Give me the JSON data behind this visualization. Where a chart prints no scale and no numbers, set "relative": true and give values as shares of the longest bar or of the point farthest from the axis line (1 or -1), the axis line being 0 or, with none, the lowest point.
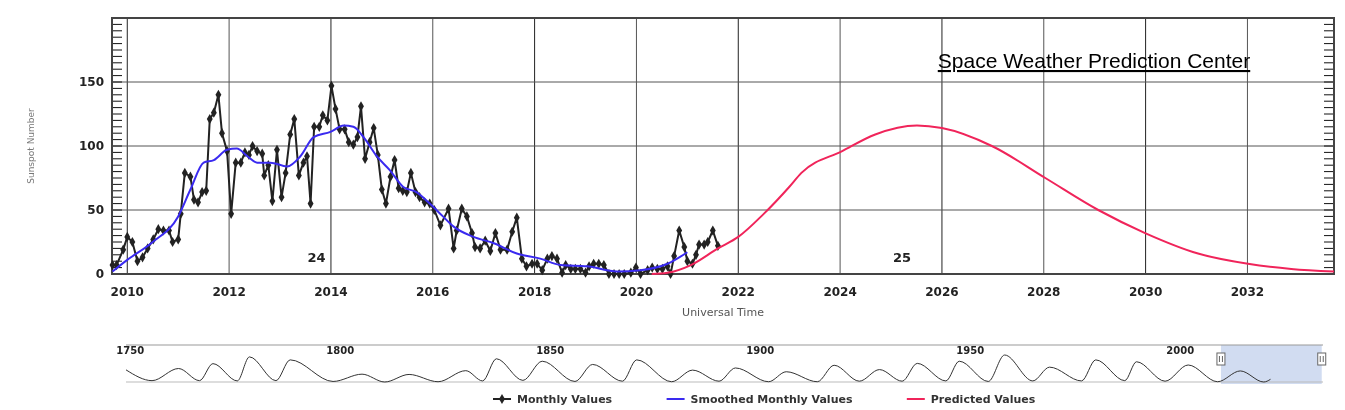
{
  "chart_data": [
    {
      "type": "line",
      "xlabel": "Universal Time",
      "ylabel": "Sunspot Number",
      "xlim": [
        2009.7,
        2033.7
      ],
      "xticks": [
        2010,
        2012,
        2014,
        2016,
        2018,
        2020,
        2022,
        2024,
        2026,
        2028,
        2030,
        2032
      ],
      "ylim": [
        0,
        200
      ],
      "yticks": [
        0,
        50,
        100,
        150
      ],
      "grid": true,
      "legend": "bottom",
      "annotations": [
        "24",
        "25",
        "Space Weather Prediction Center"
      ],
      "series": [
        {
          "name": "Monthly Values",
          "color": "#222222",
          "marker": "diamond",
          "x": [
            2009.71,
            2009.79,
            2009.92,
            2010.0,
            2010.1,
            2010.2,
            2010.3,
            2010.4,
            2010.51,
            2010.61,
            2010.71,
            2010.82,
            2010.89,
            2011.0,
            2011.05,
            2011.13,
            2011.24,
            2011.31,
            2011.39,
            2011.47,
            2011.55,
            2011.62,
            2011.7,
            2011.79,
            2011.86,
            2011.96,
            2012.04,
            2012.13,
            2012.23,
            2012.31,
            2012.39,
            2012.46,
            2012.55,
            2012.65,
            2012.69,
            2012.77,
            2012.85,
            2012.94,
            2013.03,
            2013.11,
            2013.2,
            2013.28,
            2013.37,
            2013.46,
            2013.53,
            2013.6,
            2013.67,
            2013.77,
            2013.84,
            2013.93,
            2014.01,
            2014.09,
            2014.17,
            2014.27,
            2014.35,
            2014.44,
            2014.52,
            2014.59,
            2014.67,
            2014.76,
            2014.84,
            2014.92,
            2015.0,
            2015.08,
            2015.17,
            2015.25,
            2015.33,
            2015.41,
            2015.49,
            2015.57,
            2015.66,
            2015.74,
            2015.84,
            2015.94,
            2016.03,
            2016.15,
            2016.31,
            2016.41,
            2016.47,
            2016.57,
            2016.67,
            2016.77,
            2016.83,
            2016.93,
            2017.03,
            2017.13,
            2017.23,
            2017.33,
            2017.46,
            2017.56,
            2017.65,
            2017.75,
            2017.84,
            2017.95,
            2018.05,
            2018.15,
            2018.25,
            2018.34,
            2018.44,
            2018.54,
            2018.61,
            2018.71,
            2018.8,
            2018.9,
            2019.0,
            2019.07,
            2019.16,
            2019.26,
            2019.36,
            2019.46,
            2019.56,
            2019.66,
            2019.76,
            2019.89,
            2019.99,
            2020.08,
            2020.22,
            2020.31,
            2020.41,
            2020.51,
            2020.61,
            2020.67,
            2020.74,
            2020.84,
            2020.94,
            2021.0,
            2021.1,
            2021.17,
            2021.23,
            2021.33,
            2021.4,
            2021.5,
            2021.6
          ],
          "values": [
            7,
            7,
            19,
            29,
            25,
            10,
            13,
            20,
            27,
            35,
            34,
            34,
            25,
            27,
            47,
            79,
            76,
            58,
            56,
            64,
            65,
            121,
            126,
            140,
            110,
            96,
            47,
            87,
            87,
            95,
            93,
            100,
            96,
            94,
            77,
            85,
            57,
            97,
            60,
            79,
            109,
            121,
            77,
            87,
            92,
            55,
            115,
            115,
            124,
            120,
            147,
            129,
            113,
            113,
            103,
            101,
            107,
            131,
            90,
            103,
            114,
            93,
            66,
            55,
            76,
            89,
            67,
            65,
            64,
            79,
            64,
            60,
            56,
            55,
            50,
            38,
            51,
            20,
            34,
            51,
            45,
            32,
            21,
            20,
            26,
            18,
            32,
            19,
            19,
            33,
            44,
            12,
            6,
            8,
            8,
            3,
            12,
            14,
            12,
            1,
            7,
            4,
            4,
            4,
            1,
            6,
            8,
            8,
            7,
            0,
            0,
            0,
            0,
            1,
            5,
            0,
            3,
            5,
            4,
            4,
            6,
            0,
            14,
            34,
            21,
            10,
            8,
            15,
            23,
            23,
            25,
            34,
            22
          ]
        },
        {
          "name": "Smoothed Monthly Values",
          "color": "#3a2af0",
          "marker": "none",
          "x": [
            2009.71,
            2010.0,
            2010.5,
            2011.0,
            2011.24,
            2011.5,
            2011.7,
            2011.96,
            2012.15,
            2012.36,
            2012.55,
            2012.81,
            2013.14,
            2013.4,
            2013.66,
            2013.99,
            2014.25,
            2014.44,
            2014.64,
            2014.9,
            2015.16,
            2015.42,
            2015.68,
            2015.94,
            2016.2,
            2016.41,
            2016.8,
            2017.2,
            2017.65,
            2018.11,
            2018.51,
            2019.03,
            2019.62,
            2020.08,
            2020.61,
            2021.0
          ],
          "values": [
            2,
            11,
            25,
            45,
            66,
            87,
            89,
            97,
            98,
            92,
            87,
            87,
            84,
            92,
            107,
            111,
            116,
            115,
            107,
            92,
            81,
            68,
            64,
            55,
            45,
            37,
            29,
            24,
            16,
            12,
            7,
            6,
            2,
            3,
            8,
            17
          ]
        },
        {
          "name": "Predicted Values",
          "color": "#f0245a",
          "marker": "none",
          "x": [
            2020.3,
            2020.61,
            2021.07,
            2021.6,
            2022.0,
            2022.5,
            2023.0,
            2023.24,
            2024.04,
            2024.69,
            2025.51,
            2026.0,
            2026.98,
            2028.03,
            2029.07,
            2029.99,
            2031.03,
            2032.01,
            2032.86,
            2033.7
          ],
          "values": [
            0,
            1,
            7,
            20,
            29,
            47,
            68,
            79,
            96,
            109,
            116,
            114,
            100,
            75,
            50,
            32,
            16,
            8,
            4,
            2
          ]
        }
      ]
    },
    {
      "type": "line",
      "relative": true,
      "xlim": [
        1749,
        2034
      ],
      "xticks": [
        1750,
        1800,
        1850,
        1900,
        1950,
        2000
      ],
      "tick_labels": "x",
      "bands": [
        {
          "axis": "x",
          "from": 2009.7,
          "to": 2033.7,
          "color": "#c5d3ee"
        }
      ],
      "series": [
        {
          "color": "#333333",
          "x": [
            1749,
            1755.2,
            1761.5,
            1766.5,
            1769.7,
            1775.5,
            1778.4,
            1784.7,
            1788.1,
            1798.3,
            1805.2,
            1810.6,
            1816.4,
            1823.3,
            1829.9,
            1833.9,
            1837.2,
            1843.5,
            1848.1,
            1855.9,
            1860.1,
            1867.2,
            1870.6,
            1878.9,
            1883.9,
            1890.2,
            1894.1,
            1902,
            1906.2,
            1913.6,
            1917.6,
            1923.6,
            1928.4,
            1933.8,
            1937.4,
            1944.2,
            1947.4,
            1954.3,
            1958.2,
            1964.9,
            1968.9,
            1976.5,
            1979.9,
            1986.8,
            1989.6,
            1996.4,
            2001.9,
            2008.9,
            2014.3,
            2019.9,
            2021.5
          ],
          "values": [
            0.45,
            0.05,
            0.5,
            0.05,
            0.68,
            0.04,
            0.93,
            0.05,
            0.82,
            0.02,
            0.29,
            0,
            0.28,
            0.01,
            0.42,
            0.04,
            0.86,
            0.06,
            0.77,
            0.02,
            0.65,
            0.03,
            0.82,
            0.01,
            0.44,
            0.03,
            0.52,
            0.01,
            0.38,
            0.01,
            0.62,
            0.03,
            0.46,
            0.03,
            0.69,
            0.04,
            0.77,
            0.02,
            1,
            0.04,
            0.55,
            0.04,
            0.82,
            0.05,
            0.75,
            0.03,
            0.63,
            0.01,
            0.41,
            0,
            0.1
          ]
        }
      ]
    }
  ]
}
